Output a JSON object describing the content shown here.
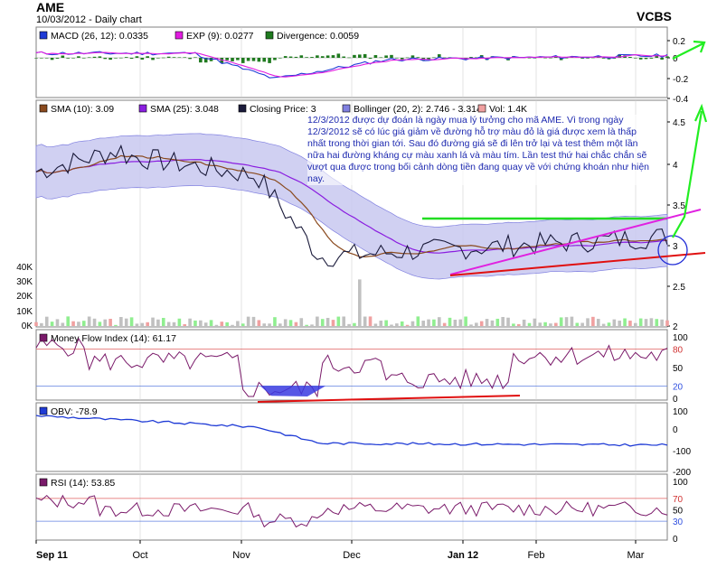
{
  "header": {
    "symbol": "AME",
    "subtitle": "10/03/2012 - Daily chart",
    "broker": "VCBS"
  },
  "panels": {
    "macd": {
      "legend": [
        {
          "label": "MACD (26, 12): 0.0335",
          "color": "#1f3bd6"
        },
        {
          "label": "EXP (9): 0.0277",
          "color": "#e11ce0"
        },
        {
          "label": "Divergence: 0.0059",
          "color": "#1f7a1f"
        }
      ],
      "ticks": [
        "0.2",
        "0",
        "-0.2",
        "-0.4"
      ]
    },
    "price": {
      "legend": [
        {
          "label": "SMA (10): 3.09",
          "color": "#8a4a1e"
        },
        {
          "label": "SMA (25): 3.048",
          "color": "#8a1ee0"
        },
        {
          "label": "Closing Price: 3",
          "color": "#1a1a3a"
        },
        {
          "label": "Bollinger (20, 2): 2.746 - 3.314",
          "color": "#8080e0"
        },
        {
          "label": "Vol: 1.4K",
          "color": "#f0a0a0"
        }
      ],
      "ticks": [
        "4.5",
        "4",
        "3.5",
        "3",
        "2.5",
        "2"
      ],
      "volume_ticks": [
        "40K",
        "30K",
        "20K",
        "10K",
        "0K"
      ],
      "annotation": "12/3/2012 được dự đoán là ngày mua lý tưởng cho mã AME. Vì trong ngày 12/3/2012 sẽ có lúc giá giảm về đường hỗ trợ màu đỏ là giá được xem là thấp nhất trong thời gian tới. Sau đó đường giá sẽ đi lên trở lại và test thêm một lần nữa hai đường kháng cự màu xanh lá và màu tím. Lần test thứ hai chắc chắn sẽ vượt qua được trong bối cảnh dòng tiền đang quay về với chứng khoán như hiện nay."
    },
    "mfi": {
      "legend": [
        {
          "label": "Money Flow Index (14): 61.17",
          "color": "#7a1a6a"
        }
      ],
      "ticks": [
        "100",
        "80",
        "50",
        "20",
        "0"
      ]
    },
    "obv": {
      "legend": [
        {
          "label": "OBV: -78.9",
          "color": "#1f3bd6"
        }
      ],
      "ticks": [
        "100",
        "0",
        "-100",
        "-200"
      ]
    },
    "rsi": {
      "legend": [
        {
          "label": "RSI (14): 53.85",
          "color": "#7a1a6a"
        }
      ],
      "ticks": [
        "100",
        "70",
        "50",
        "30",
        "0"
      ]
    }
  },
  "x_axis": [
    "Sep 11",
    "Oct",
    "Nov",
    "Dec",
    "Jan 12",
    "Feb",
    "Mar"
  ],
  "colors": {
    "panel_bg": "#ffffff",
    "frame": "#808080",
    "grid": "#d0d0d0",
    "outer_bg": "#ffffff"
  },
  "chart_data": {
    "type": "line",
    "title": "AME",
    "x": [
      "2011-09-11",
      "2011-10-01",
      "2011-11-01",
      "2011-12-01",
      "2012-01-01",
      "2012-02-01",
      "2012-03-01",
      "2012-03-10"
    ],
    "series": [
      {
        "name": "Closing Price",
        "values": [
          3.9,
          4.2,
          3.8,
          2.8,
          2.9,
          3.0,
          3.15,
          3.0
        ]
      },
      {
        "name": "SMA (10)",
        "values": [
          3.95,
          4.0,
          3.8,
          2.85,
          2.95,
          3.05,
          3.1,
          3.09
        ]
      },
      {
        "name": "SMA (25)",
        "values": [
          3.85,
          3.9,
          3.85,
          3.0,
          2.9,
          3.0,
          3.05,
          3.048
        ]
      },
      {
        "name": "Bollinger upper",
        "values": [
          4.3,
          4.3,
          4.2,
          3.2,
          3.2,
          3.3,
          3.3,
          3.314
        ]
      },
      {
        "name": "Bollinger lower",
        "values": [
          3.6,
          3.6,
          3.5,
          2.5,
          2.6,
          2.7,
          2.75,
          2.746
        ]
      }
    ],
    "ylim": [
      2,
      4.7
    ],
    "xlabel": "",
    "ylabel": "",
    "grid": true,
    "legend": "top-left",
    "indicators": {
      "macd": {
        "macd": 0.0335,
        "exp": 0.0277,
        "divergence": 0.0059,
        "ylim": [
          -0.4,
          0.2
        ]
      },
      "mfi": {
        "value": 61.17,
        "ylim": [
          0,
          100
        ],
        "bands": [
          20,
          80
        ]
      },
      "obv": {
        "value": -78.9,
        "ylim": [
          -200,
          100
        ]
      },
      "rsi": {
        "value": 53.85,
        "ylim": [
          0,
          100
        ],
        "bands": [
          30,
          70
        ]
      },
      "volume": {
        "value": 1.4,
        "unit": "K",
        "ylim": [
          0,
          40
        ]
      }
    }
  }
}
